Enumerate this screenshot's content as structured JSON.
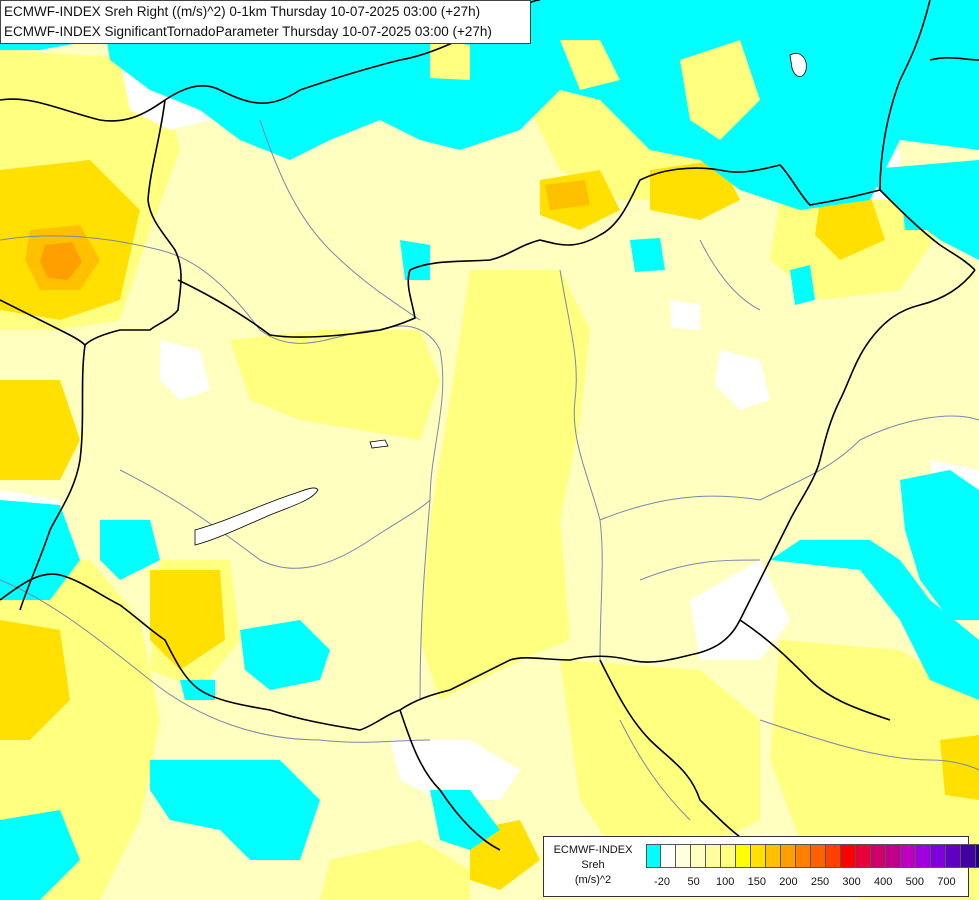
{
  "header": {
    "line1": "ECMWF-INDEX Sreh Right ((m/s)^2) 0-1km Thursday 10-07-2025 03:00 (+27h)",
    "line2": "ECMWF-INDEX SignificantTornadoParameter Thursday 10-07-2025 03:00 (+27h)"
  },
  "legend": {
    "title": "ECMWF-INDEX",
    "variable": "Sreh",
    "unit": "(m/s)^2",
    "colors": [
      "#00ffff",
      "#ffffff",
      "#ffffe0",
      "#ffffc0",
      "#ffffa0",
      "#ffff80",
      "#ffff00",
      "#ffe000",
      "#ffc000",
      "#ffa000",
      "#ff8000",
      "#ff6000",
      "#ff4000",
      "#ff0000",
      "#e8003a",
      "#d0006a",
      "#c0008c",
      "#c000c0",
      "#a000e0",
      "#8000e0",
      "#6000c0",
      "#4000a0",
      "#200080",
      "#000080"
    ],
    "tick_labels": [
      "-20",
      "50",
      "100",
      "150",
      "200",
      "250",
      "300",
      "400",
      "500",
      "700"
    ]
  },
  "palette": {
    "cyan": "#00ffff",
    "pale": "#ffffc0",
    "light_yellow": "#ffff80",
    "yellow": "#ffff00",
    "gold": "#ffe000",
    "orange": "#ffc000",
    "dark_orange": "#ffa000"
  }
}
